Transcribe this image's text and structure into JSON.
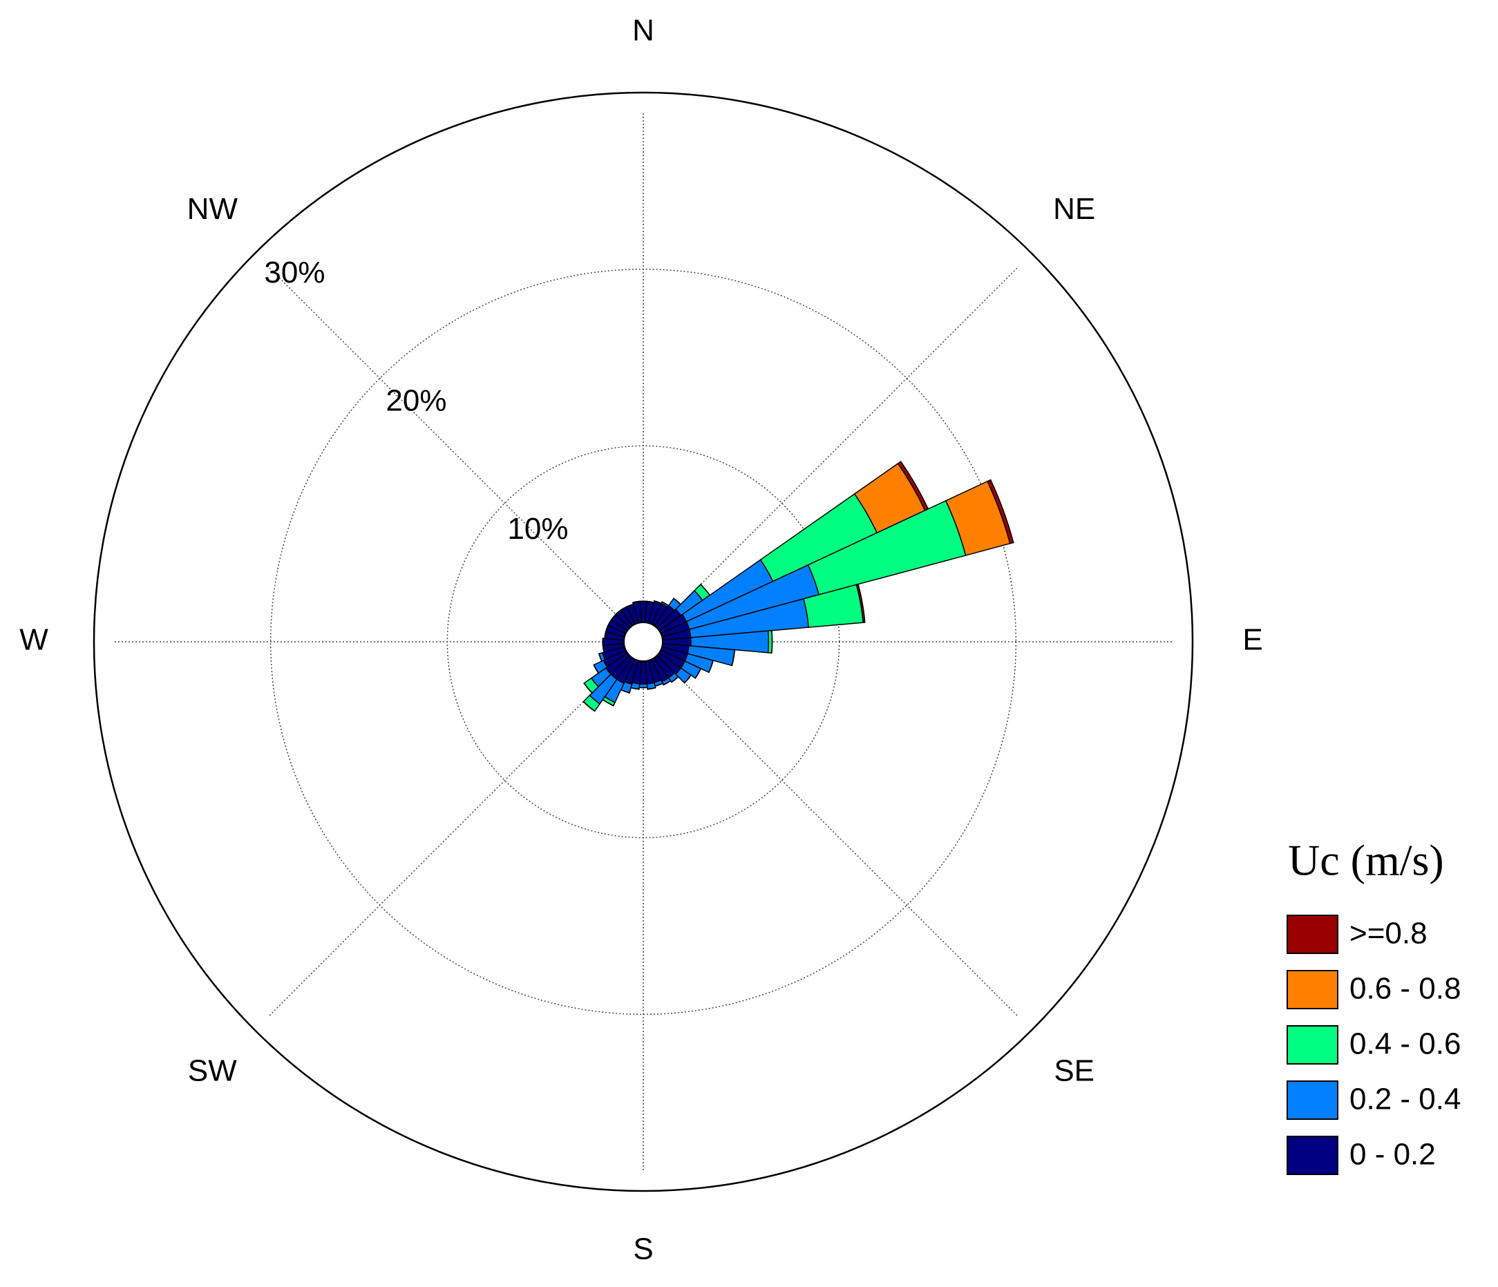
{
  "chart_data": {
    "type": "windrose",
    "compass_labels": [
      "N",
      "NE",
      "E",
      "SE",
      "S",
      "SW",
      "W",
      "NW"
    ],
    "directions": [
      0,
      10,
      20,
      30,
      40,
      50,
      60,
      70,
      80,
      90,
      100,
      110,
      120,
      130,
      140,
      150,
      160,
      170,
      180,
      190,
      200,
      210,
      220,
      230,
      240,
      250,
      260,
      270,
      280,
      290,
      300,
      310,
      320,
      330,
      340,
      350
    ],
    "sector_width": 10,
    "rlim": [
      0,
      30
    ],
    "rticks": [
      {
        "value": 10,
        "label": "10%"
      },
      {
        "value": 20,
        "label": "20%"
      },
      {
        "value": 30,
        "label": "30%"
      }
    ],
    "grid": true,
    "legend_title": "Uc (m/s)",
    "legend_position": "right",
    "series": [
      {
        "name": "0 - 0.2",
        "color": "#000080",
        "values": [
          1.2,
          1.2,
          1.3,
          1.3,
          1.4,
          1.5,
          1.6,
          1.6,
          1.6,
          1.6,
          1.5,
          1.5,
          1.5,
          1.5,
          1.4,
          1.4,
          1.3,
          1.3,
          1.3,
          1.3,
          1.4,
          1.5,
          1.5,
          1.5,
          1.4,
          1.3,
          1.2,
          1.2,
          1.1,
          1.1,
          1.1,
          1.1,
          1.1,
          1.1,
          1.1,
          1.2
        ]
      },
      {
        "name": "0.2 - 0.4",
        "color": "#0080ff",
        "values": [
          0,
          0,
          0,
          0.1,
          0.5,
          1.5,
          5.4,
          7.6,
          6.7,
          4.4,
          2.6,
          1.5,
          1.0,
          0.7,
          0.3,
          0.2,
          0.2,
          0.3,
          0.2,
          0.3,
          0.5,
          1.2,
          1.7,
          1.0,
          0.6,
          0.2,
          0,
          0,
          0,
          0,
          0,
          0,
          0,
          0,
          0,
          0
        ]
      },
      {
        "name": "0.4 - 0.6",
        "color": "#00ff80",
        "values": [
          0,
          0,
          0,
          0,
          0,
          0.5,
          6.5,
          8.6,
          3.1,
          0.2,
          0,
          0,
          0,
          0,
          0,
          0,
          0,
          0,
          0,
          0,
          0,
          0.2,
          0.5,
          0.5,
          0,
          0,
          0,
          0,
          0,
          0,
          0,
          0,
          0,
          0,
          0,
          0
        ]
      },
      {
        "name": "0.6 - 0.8",
        "color": "#ff8000",
        "values": [
          0,
          0,
          0,
          0,
          0,
          0,
          3.0,
          2.6,
          0,
          0,
          0,
          0,
          0,
          0,
          0,
          0,
          0,
          0,
          0,
          0,
          0,
          0,
          0,
          0,
          0,
          0,
          0,
          0,
          0,
          0,
          0,
          0,
          0,
          0,
          0,
          0
        ]
      },
      {
        "name": ">=0.8",
        "color": "#990000",
        "values": [
          0,
          0,
          0,
          0,
          0,
          0,
          0.2,
          0.2,
          0.1,
          0,
          0,
          0,
          0,
          0,
          0,
          0,
          0,
          0,
          0,
          0,
          0,
          0,
          0,
          0,
          0,
          0,
          0,
          0,
          0,
          0,
          0,
          0,
          0,
          0,
          0,
          0
        ]
      }
    ]
  }
}
